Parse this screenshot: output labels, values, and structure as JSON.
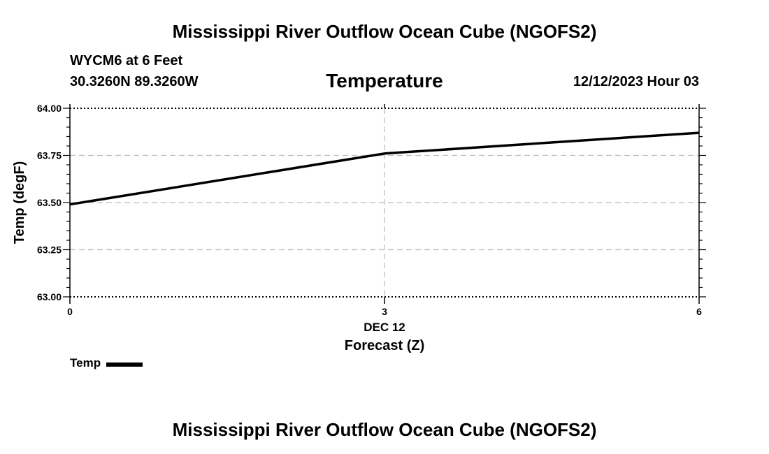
{
  "header": {
    "main_title": "Mississippi River Outflow Ocean Cube (NGOFS2)",
    "station": "WYCM6 at 6 Feet",
    "coords": "30.3260N  89.3260W",
    "chart_title": "Temperature",
    "datetime": "12/12/2023 Hour 03"
  },
  "footer": {
    "title": "Mississippi River Outflow Ocean Cube (NGOFS2)"
  },
  "chart_data": {
    "type": "line",
    "title": "Temperature",
    "xlabel": "Forecast (Z)",
    "ylabel": "Temp (degF)",
    "xlim": [
      0,
      6
    ],
    "ylim": [
      63.0,
      64.0
    ],
    "x_ticks": [
      0,
      3,
      6
    ],
    "x_tick_labels": [
      "0",
      "3",
      "6"
    ],
    "x_sublabel": "DEC 12",
    "y_ticks": [
      63.0,
      63.25,
      63.5,
      63.75,
      64.0
    ],
    "y_tick_labels": [
      "63.00",
      "63.25",
      "63.50",
      "63.75",
      "64.00"
    ],
    "grid": true,
    "legend": "bottom-left",
    "series": [
      {
        "name": "Temp",
        "color": "#000000",
        "x": [
          0,
          3,
          6
        ],
        "values": [
          63.49,
          63.76,
          63.87
        ]
      }
    ]
  }
}
